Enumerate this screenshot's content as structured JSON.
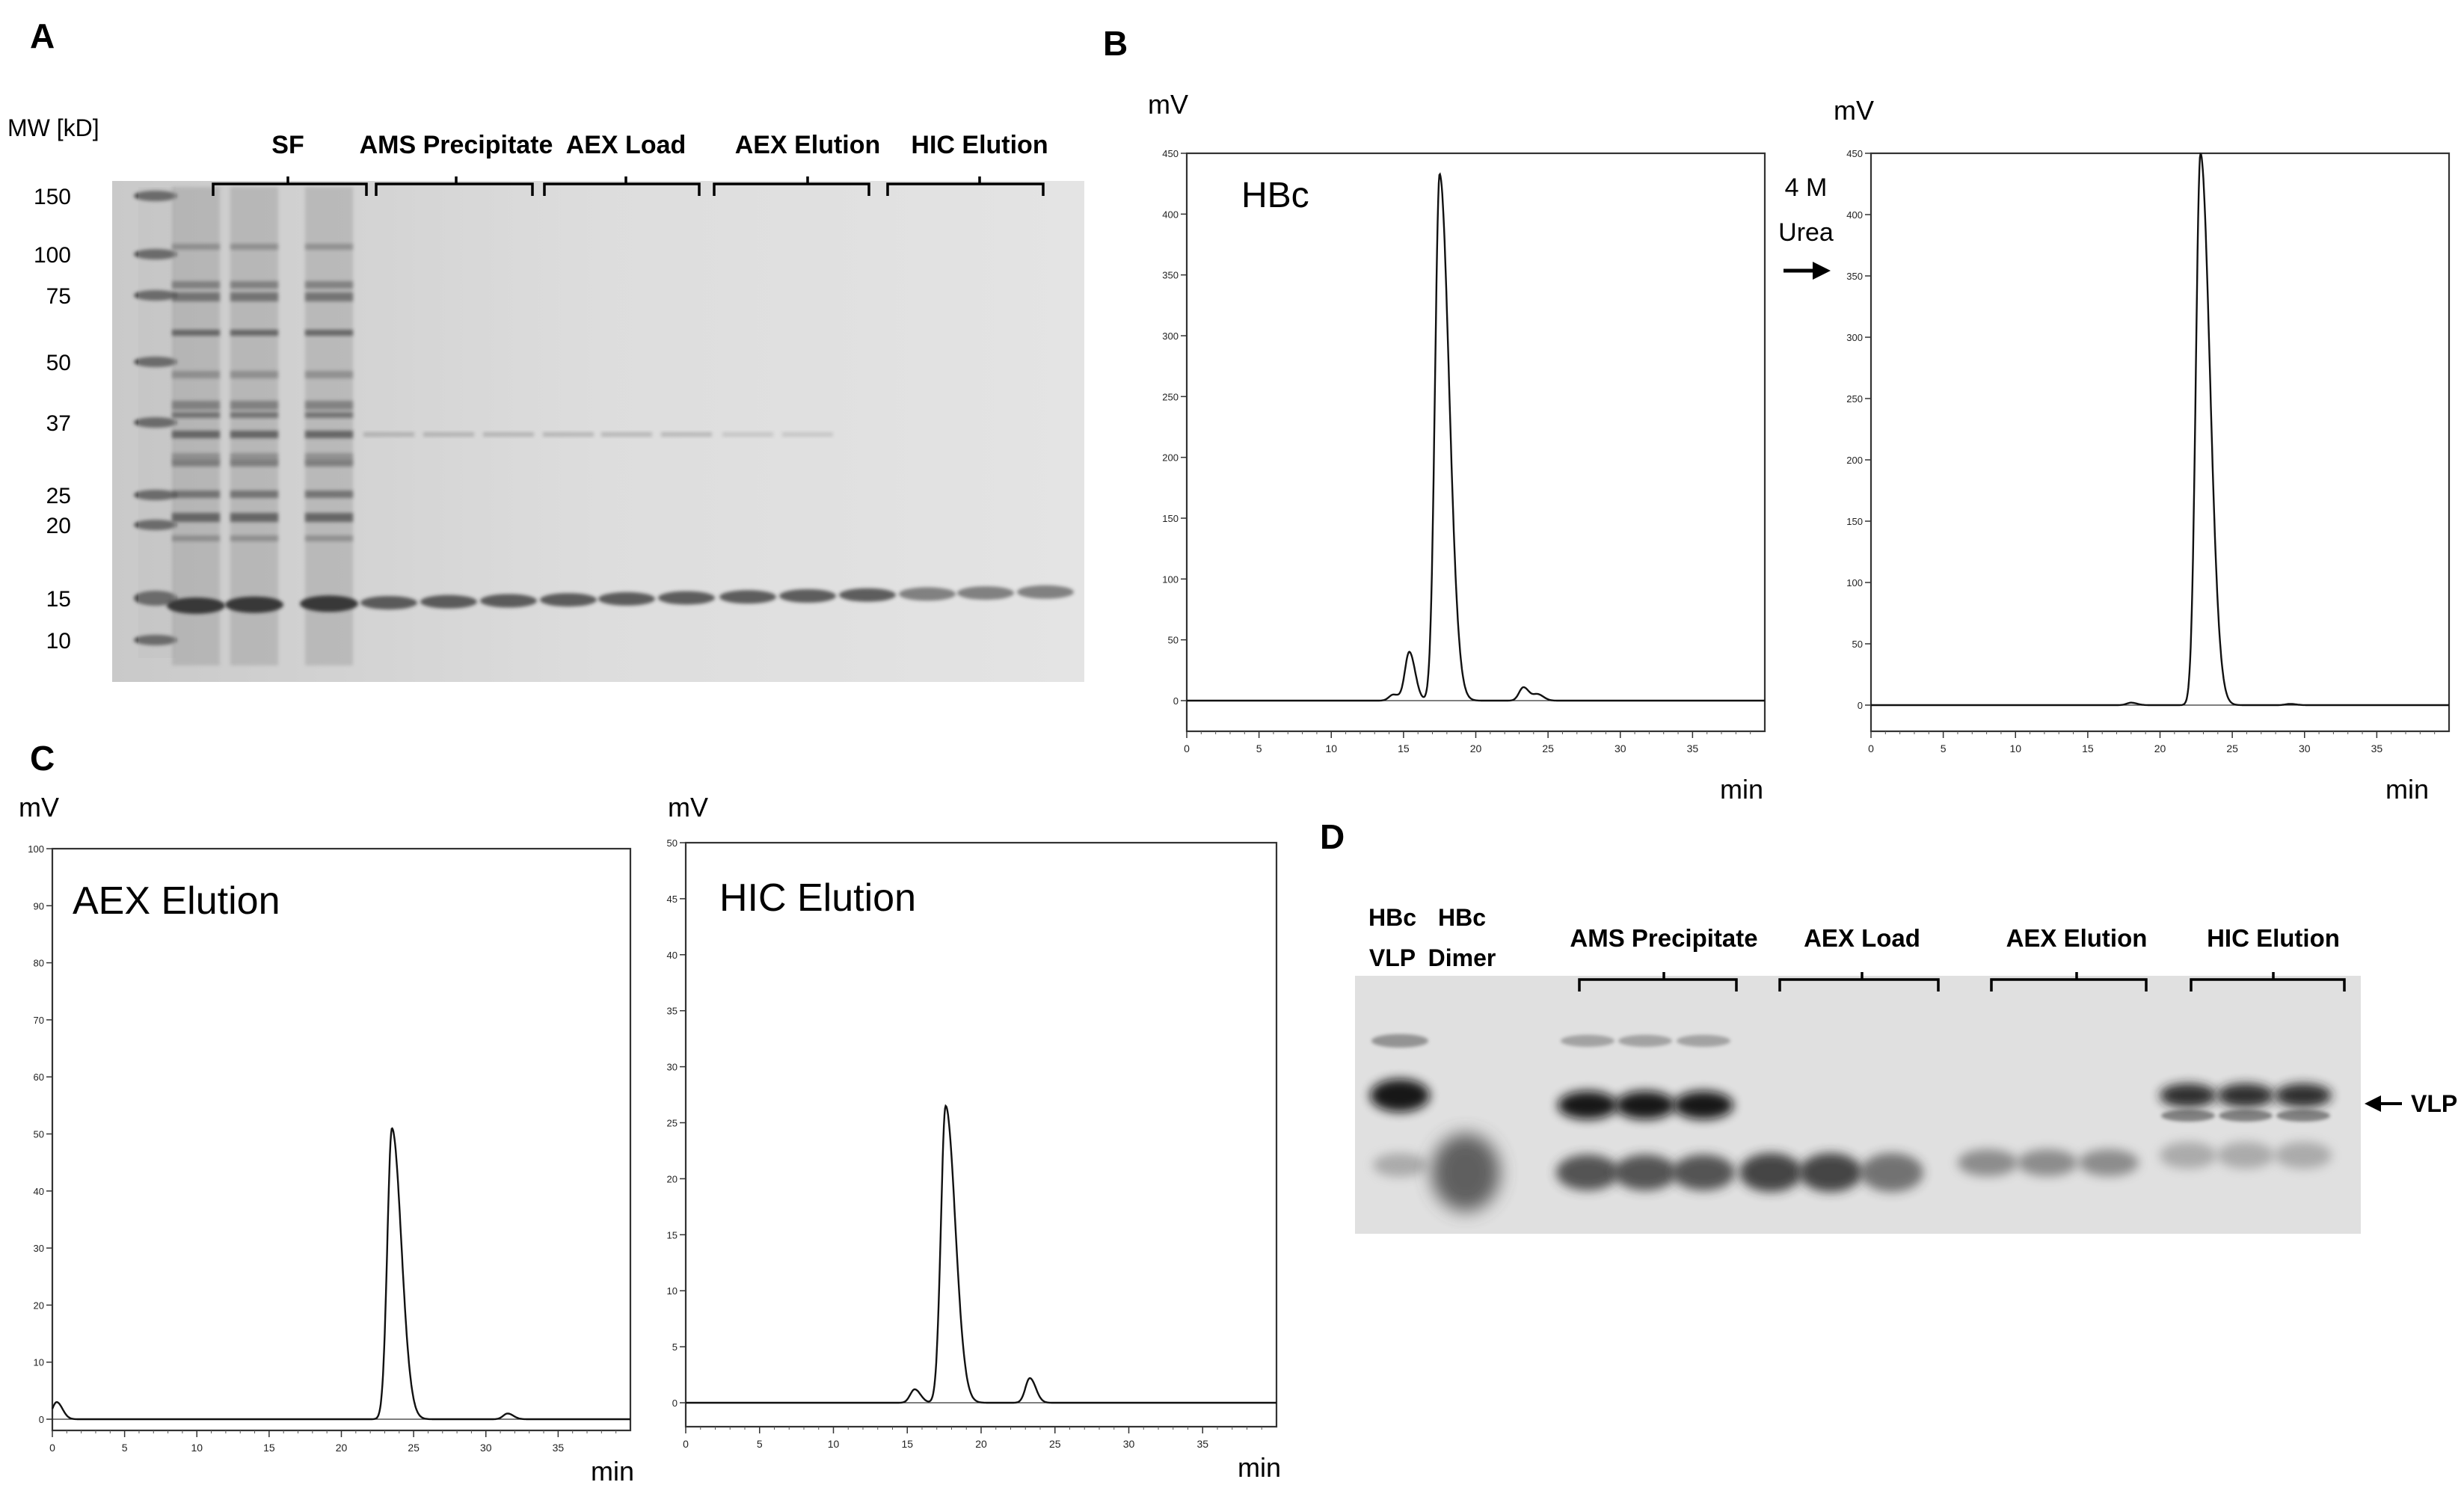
{
  "panels": {
    "A": {
      "letter": "A",
      "mw_title": "MW [kD]",
      "mw_labels": [
        "150",
        "100",
        "75",
        "50",
        "37",
        "25",
        "20",
        "15",
        "10"
      ],
      "groups": [
        "SF",
        "AMS Precipitate",
        "AEX Load",
        "AEX Elution",
        "HIC Elution"
      ]
    },
    "B": {
      "letter": "B",
      "urea_label": [
        "4 M",
        "Urea"
      ],
      "left": {
        "inset_label": "HBc",
        "yunit": "mV",
        "xunit": "min"
      },
      "right": {
        "inset_label": "",
        "yunit": "mV",
        "xunit": "min"
      }
    },
    "C": {
      "letter": "C",
      "left": {
        "inset_label": "AEX Elution",
        "yunit": "mV",
        "xunit": "min"
      },
      "right": {
        "inset_label": "HIC Elution",
        "yunit": "mV",
        "xunit": "min"
      }
    },
    "D": {
      "letter": "D",
      "standards": [
        {
          "line1": "HBc",
          "line2": "VLP"
        },
        {
          "line1": "HBc",
          "line2": "Dimer"
        }
      ],
      "groups": [
        "AMS Precipitate",
        "AEX Load",
        "AEX Elution",
        "HIC Elution"
      ],
      "vlp_label": "VLP"
    }
  },
  "chart_data": [
    {
      "type": "line",
      "id": "B-left",
      "ylabel": "mV",
      "xlabel": "min",
      "xlim": [
        0,
        40
      ],
      "ylim": [
        -25,
        450
      ],
      "xticks": [
        0,
        5,
        10,
        15,
        20,
        25,
        30,
        35
      ],
      "yticks": [
        0,
        50,
        100,
        150,
        200,
        250,
        300,
        350,
        400,
        450
      ],
      "peaks": [
        {
          "x": 14.3,
          "y": 5
        },
        {
          "x": 15.4,
          "y": 40
        },
        {
          "x": 17.5,
          "y": 433
        },
        {
          "x": 23.3,
          "y": 11
        },
        {
          "x": 24.3,
          "y": 5
        }
      ]
    },
    {
      "type": "line",
      "id": "B-right",
      "ylabel": "mV",
      "xlabel": "min",
      "xlim": [
        0,
        40
      ],
      "ylim": [
        -25,
        450
      ],
      "xticks": [
        0,
        5,
        10,
        15,
        20,
        25,
        30,
        35
      ],
      "yticks": [
        0,
        50,
        100,
        150,
        200,
        250,
        300,
        350,
        400,
        450
      ],
      "peaks": [
        {
          "x": 18.0,
          "y": 2
        },
        {
          "x": 22.8,
          "y": 450
        },
        {
          "x": 29.0,
          "y": 1
        }
      ]
    },
    {
      "type": "line",
      "id": "C-left",
      "ylabel": "mV",
      "xlabel": "min",
      "xlim": [
        0,
        40
      ],
      "ylim": [
        0,
        100
      ],
      "xticks": [
        0,
        5,
        10,
        15,
        20,
        25,
        30,
        35
      ],
      "yticks": [
        0,
        10,
        20,
        30,
        40,
        50,
        60,
        70,
        80,
        90,
        100
      ],
      "peaks": [
        {
          "x": 0.3,
          "y": 3
        },
        {
          "x": 23.5,
          "y": 51
        },
        {
          "x": 31.5,
          "y": 1
        }
      ]
    },
    {
      "type": "line",
      "id": "C-right",
      "ylabel": "mV",
      "xlabel": "min",
      "xlim": [
        0,
        40
      ],
      "ylim": [
        -2,
        50
      ],
      "xticks": [
        0,
        5,
        10,
        15,
        20,
        25,
        30,
        35
      ],
      "yticks": [
        0,
        5,
        10,
        15,
        20,
        25,
        30,
        35,
        40,
        45,
        50
      ],
      "peaks": [
        {
          "x": 15.5,
          "y": 1.2
        },
        {
          "x": 17.6,
          "y": 26.5
        },
        {
          "x": 23.3,
          "y": 2.2
        }
      ]
    }
  ]
}
